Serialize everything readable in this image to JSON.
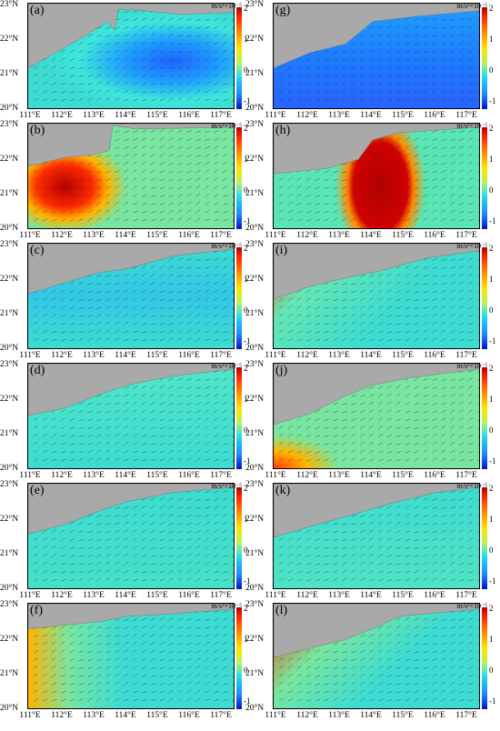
{
  "unit": "m/s²×10⁻⁵",
  "yticks": [
    "23°N",
    "22°N",
    "21°N",
    "20°N"
  ],
  "xticks": [
    "111°E",
    "112°E",
    "113°E",
    "114°E",
    "115°E",
    "116°E",
    "117°E"
  ],
  "cbticks": [
    "2",
    "1",
    "0",
    "-1"
  ],
  "panels": [
    {
      "label": "(a)"
    },
    {
      "label": "(g)"
    },
    {
      "label": "(b)"
    },
    {
      "label": "(h)"
    },
    {
      "label": "(c)"
    },
    {
      "label": "(i)"
    },
    {
      "label": "(d)"
    },
    {
      "label": "(j)"
    },
    {
      "label": "(e)"
    },
    {
      "label": "(k)"
    },
    {
      "label": "(f)"
    },
    {
      "label": "(l)"
    }
  ],
  "colors": {
    "land": "#a9a9a9",
    "water": "#3cdcd2"
  }
}
